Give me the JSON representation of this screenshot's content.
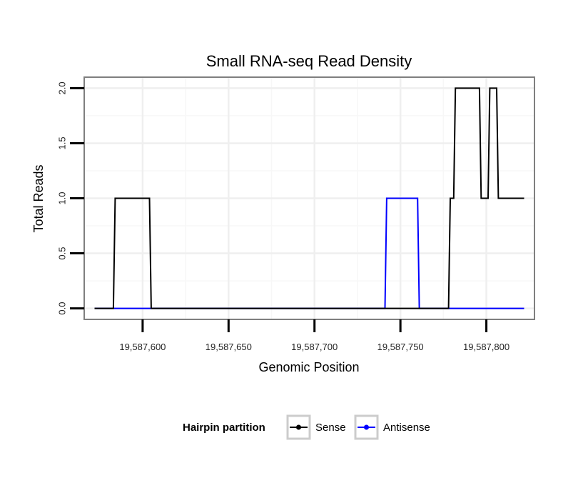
{
  "chart_data": {
    "type": "line",
    "title": "Small RNA-seq Read Density",
    "xlabel": "Genomic Position",
    "ylabel": "Total Reads",
    "xlim": [
      19587566,
      19587828
    ],
    "ylim": [
      -0.1,
      2.1
    ],
    "x_ticks": [
      19587600,
      19587650,
      19587700,
      19587750,
      19587800
    ],
    "x_tick_labels": [
      "19,587,600",
      "19,587,650",
      "19,587,700",
      "19,587,750",
      "19,587,800"
    ],
    "y_ticks": [
      0.0,
      0.5,
      1.0,
      1.5,
      2.0
    ],
    "y_tick_labels": [
      "0.0",
      "0.5",
      "1.0",
      "1.5",
      "2.0"
    ],
    "grid": true,
    "legend_title": "Hairpin partition",
    "legend_position": "bottom",
    "series": [
      {
        "name": "Sense",
        "color": "#000000",
        "x": [
          19587572,
          19587583,
          19587584,
          19587603,
          19587604,
          19587605,
          19587778,
          19587779,
          19587780,
          19587781,
          19587782,
          19587783,
          19587796,
          19587797,
          19587801,
          19587802,
          19587805,
          19587806,
          19587807,
          19587808,
          19587822
        ],
        "y": [
          0,
          0,
          1,
          1,
          1,
          0,
          0,
          1,
          1,
          1,
          2,
          2,
          2,
          1,
          1,
          2,
          2,
          2,
          1,
          1,
          1
        ]
      },
      {
        "name": "Antisense",
        "color": "#0000ff",
        "x": [
          19587572,
          19587741,
          19587742,
          19587760,
          19587761,
          19587822
        ],
        "y": [
          0,
          0,
          1,
          1,
          0,
          0
        ]
      }
    ]
  }
}
